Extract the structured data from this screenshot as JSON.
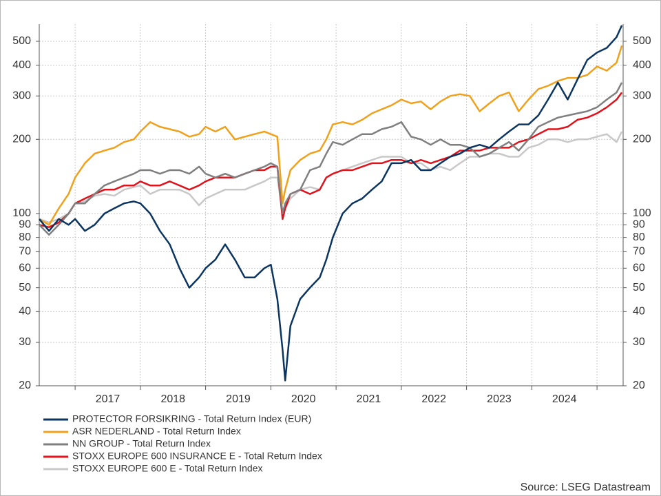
{
  "chart_data": {
    "type": "line",
    "x": [
      2016.45,
      2016.6,
      2016.75,
      2016.9,
      2017.0,
      2017.15,
      2017.3,
      2017.45,
      2017.6,
      2017.75,
      2017.9,
      2018.0,
      2018.15,
      2018.3,
      2018.45,
      2018.6,
      2018.75,
      2018.9,
      2019.0,
      2019.15,
      2019.3,
      2019.45,
      2019.6,
      2019.75,
      2019.9,
      2020.0,
      2020.1,
      2020.18,
      2020.22,
      2020.3,
      2020.45,
      2020.6,
      2020.75,
      2020.85,
      2020.95,
      2021.1,
      2021.25,
      2021.4,
      2021.55,
      2021.7,
      2021.85,
      2022.0,
      2022.15,
      2022.3,
      2022.45,
      2022.6,
      2022.75,
      2022.9,
      2023.05,
      2023.2,
      2023.35,
      2023.5,
      2023.65,
      2023.8,
      2023.95,
      2024.1,
      2024.25,
      2024.4,
      2024.55,
      2024.7,
      2024.85,
      2025.0,
      2025.15,
      2025.3,
      2025.38
    ],
    "series": [
      {
        "name": "PROTECTOR FORSIKRING - Total Return Index (EUR)",
        "color": "#0b3560",
        "values": [
          95,
          85,
          95,
          90,
          95,
          85,
          90,
          100,
          105,
          110,
          112,
          110,
          100,
          85,
          75,
          60,
          50,
          55,
          60,
          65,
          75,
          65,
          55,
          55,
          60,
          62,
          45,
          28,
          21,
          35,
          45,
          50,
          55,
          65,
          80,
          100,
          110,
          115,
          125,
          135,
          160,
          160,
          165,
          150,
          150,
          160,
          170,
          175,
          185,
          190,
          185,
          200,
          215,
          230,
          230,
          250,
          290,
          340,
          290,
          350,
          420,
          450,
          470,
          520,
          580
        ]
      },
      {
        "name": "ASR NEDERLAND - Total Return Index",
        "color": "#f0a11b",
        "values": [
          95,
          90,
          105,
          120,
          140,
          160,
          175,
          180,
          185,
          195,
          200,
          215,
          235,
          225,
          220,
          215,
          205,
          210,
          225,
          215,
          225,
          200,
          205,
          210,
          215,
          210,
          205,
          110,
          125,
          150,
          165,
          175,
          180,
          200,
          230,
          235,
          230,
          240,
          255,
          265,
          275,
          290,
          280,
          285,
          265,
          285,
          300,
          305,
          300,
          260,
          280,
          300,
          310,
          260,
          290,
          320,
          330,
          345,
          355,
          355,
          365,
          395,
          380,
          410,
          480
        ]
      },
      {
        "name": "NN GROUP - Total Return Index",
        "color": "#7f7f7f",
        "values": [
          90,
          82,
          90,
          100,
          110,
          110,
          120,
          130,
          135,
          140,
          145,
          150,
          150,
          145,
          150,
          150,
          145,
          155,
          145,
          140,
          145,
          140,
          145,
          150,
          155,
          160,
          155,
          100,
          110,
          120,
          125,
          150,
          155,
          175,
          195,
          190,
          200,
          210,
          210,
          220,
          225,
          235,
          205,
          200,
          190,
          200,
          190,
          190,
          185,
          170,
          175,
          185,
          195,
          180,
          200,
          225,
          235,
          245,
          250,
          255,
          260,
          270,
          290,
          310,
          340
        ]
      },
      {
        "name": "STOXX EUROPE 600 INSURANCE E - Total Return Index",
        "color": "#e0121b",
        "values": [
          90,
          88,
          92,
          100,
          110,
          115,
          120,
          125,
          125,
          130,
          130,
          135,
          130,
          130,
          135,
          130,
          125,
          130,
          135,
          140,
          140,
          140,
          145,
          150,
          150,
          155,
          155,
          95,
          105,
          120,
          125,
          120,
          125,
          140,
          145,
          150,
          150,
          155,
          160,
          160,
          165,
          165,
          160,
          165,
          160,
          165,
          170,
          180,
          180,
          180,
          185,
          185,
          185,
          195,
          200,
          210,
          220,
          220,
          225,
          240,
          245,
          255,
          270,
          290,
          310
        ]
      },
      {
        "name": "STOXX EUROPE 600 E - Total Return Index",
        "color": "#c8c8c8",
        "values": [
          95,
          92,
          95,
          100,
          110,
          112,
          118,
          120,
          118,
          125,
          128,
          130,
          120,
          125,
          125,
          125,
          120,
          108,
          115,
          120,
          125,
          125,
          125,
          130,
          135,
          140,
          140,
          100,
          105,
          115,
          125,
          128,
          125,
          140,
          145,
          150,
          155,
          160,
          165,
          170,
          170,
          170,
          160,
          160,
          150,
          155,
          150,
          160,
          170,
          170,
          175,
          175,
          170,
          170,
          185,
          190,
          200,
          200,
          195,
          200,
          200,
          205,
          210,
          195,
          215
        ]
      }
    ],
    "xlim": [
      2016.45,
      2025.4
    ],
    "xgrid": [
      2017,
      2018,
      2019,
      2020,
      2021,
      2022,
      2023,
      2024,
      2025
    ],
    "xticks": [
      {
        "value": 2017.5,
        "label": "2017"
      },
      {
        "value": 2018.5,
        "label": "2018"
      },
      {
        "value": 2019.5,
        "label": "2019"
      },
      {
        "value": 2020.5,
        "label": "2020"
      },
      {
        "value": 2021.5,
        "label": "2021"
      },
      {
        "value": 2022.5,
        "label": "2022"
      },
      {
        "value": 2023.5,
        "label": "2023"
      },
      {
        "value": 2024.5,
        "label": "2024"
      }
    ],
    "yscale": "log",
    "ylim": [
      20,
      587
    ],
    "yticks": [
      20,
      30,
      40,
      50,
      60,
      70,
      80,
      90,
      100,
      200,
      300,
      400,
      500
    ],
    "y2lim": [
      20,
      587
    ],
    "y2ticks": [
      20,
      30,
      40,
      50,
      60,
      70,
      80,
      90,
      100,
      200,
      300,
      400,
      500
    ],
    "grid": true,
    "legend": "bottom-left",
    "source": "Source: LSEG Datastream"
  }
}
